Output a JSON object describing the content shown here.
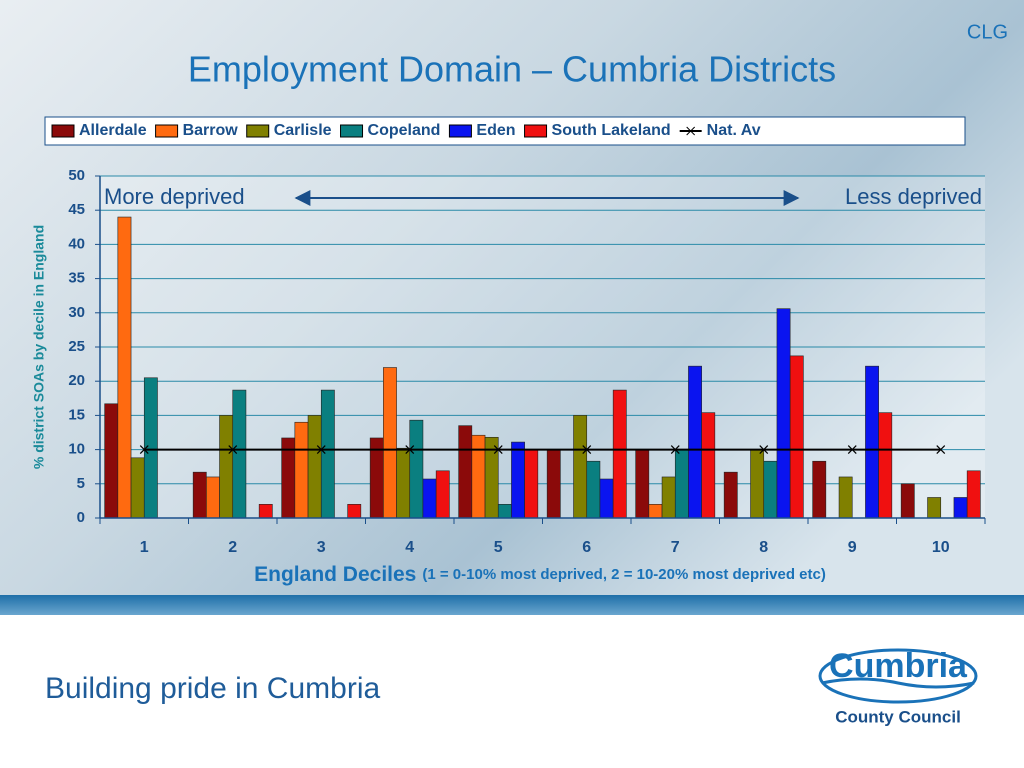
{
  "chart_data": {
    "type": "bar",
    "corner_label": "CLG",
    "title": "Employment Domain – Cumbria Districts",
    "y_label": "% district SOAs by decile in England",
    "x_label": "England Deciles",
    "x_label_note": "(1 = 0-10% most deprived, 2 = 10-20% most deprived etc)",
    "annotations": [
      "More deprived",
      "Less deprived"
    ],
    "categories": [
      "1",
      "2",
      "3",
      "4",
      "5",
      "6",
      "7",
      "8",
      "9",
      "10"
    ],
    "ylim": [
      0,
      50
    ],
    "yticks": [
      0,
      5,
      10,
      15,
      20,
      25,
      30,
      35,
      40,
      45,
      50
    ],
    "grid": true,
    "legend": "top",
    "series": [
      {
        "name": "Allerdale",
        "color": "#8b0a0a",
        "values": [
          16.7,
          6.7,
          11.7,
          11.7,
          13.5,
          10,
          10,
          6.7,
          8.3,
          5
        ]
      },
      {
        "name": "Barrow",
        "color": "#ff6a10",
        "values": [
          44,
          6,
          14,
          22,
          12.1,
          0,
          2,
          0,
          0,
          0
        ]
      },
      {
        "name": "Carlisle",
        "color": "#808000",
        "values": [
          8.8,
          15,
          15,
          10.2,
          11.8,
          15,
          6,
          10,
          6,
          3
        ]
      },
      {
        "name": "Copeland",
        "color": "#0a7f80",
        "values": [
          20.5,
          18.7,
          18.7,
          14.3,
          2,
          8.3,
          10,
          8.3,
          0,
          0
        ]
      },
      {
        "name": "Eden",
        "color": "#0a14f0",
        "values": [
          0,
          0,
          0,
          5.7,
          11.1,
          5.7,
          22.2,
          30.6,
          22.2,
          3
        ]
      },
      {
        "name": "South Lakeland",
        "color": "#f01010",
        "values": [
          0,
          2,
          2,
          6.9,
          10,
          18.7,
          15.4,
          23.7,
          15.4,
          6.9
        ]
      },
      {
        "name": "Nat. Av",
        "color": "#000000",
        "type": "line",
        "marker": "x",
        "values": [
          10,
          10,
          10,
          10,
          10,
          10,
          10,
          10,
          10,
          10
        ]
      }
    ]
  },
  "footer": {
    "slogan": "Building pride in Cumbria",
    "logo_name": "Cumbria",
    "logo_sub": "County Council"
  }
}
